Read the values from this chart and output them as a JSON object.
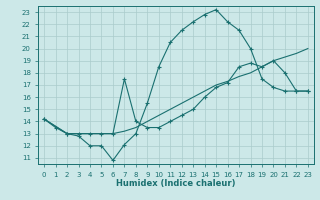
{
  "xlabel": "Humidex (Indice chaleur)",
  "ylabel": "",
  "xlim": [
    -0.5,
    23.5
  ],
  "ylim": [
    10.5,
    23.5
  ],
  "xticks": [
    0,
    1,
    2,
    3,
    4,
    5,
    6,
    7,
    8,
    9,
    10,
    11,
    12,
    13,
    14,
    15,
    16,
    17,
    18,
    19,
    20,
    21,
    22,
    23
  ],
  "yticks": [
    11,
    12,
    13,
    14,
    15,
    16,
    17,
    18,
    19,
    20,
    21,
    22,
    23
  ],
  "bg_color": "#cce8e8",
  "line_color": "#1a7070",
  "grid_color": "#aacccc",
  "lines": [
    {
      "x": [
        0,
        1,
        2,
        3,
        4,
        5,
        6,
        7,
        8,
        9,
        10,
        11,
        12,
        13,
        14,
        15,
        16,
        17,
        18,
        19,
        20,
        21,
        22,
        23
      ],
      "y": [
        14.2,
        13.5,
        13.0,
        12.8,
        12.0,
        12.0,
        10.8,
        12.1,
        13.0,
        15.5,
        18.5,
        20.5,
        21.5,
        22.2,
        22.8,
        23.2,
        22.2,
        21.5,
        20.0,
        17.5,
        16.8,
        16.5,
        16.5,
        16.5
      ],
      "marker": true
    },
    {
      "x": [
        0,
        2,
        3,
        4,
        5,
        6,
        7,
        8,
        9,
        10,
        11,
        12,
        13,
        14,
        15,
        16,
        17,
        18,
        19,
        20,
        21,
        22,
        23
      ],
      "y": [
        14.2,
        13.0,
        13.0,
        13.0,
        13.0,
        13.0,
        13.2,
        13.5,
        14.0,
        14.5,
        15.0,
        15.5,
        16.0,
        16.5,
        17.0,
        17.3,
        17.7,
        18.0,
        18.5,
        19.0,
        19.3,
        19.6,
        20.0
      ],
      "marker": false
    },
    {
      "x": [
        0,
        2,
        3,
        4,
        5,
        6,
        7,
        8,
        9,
        10,
        11,
        12,
        13,
        14,
        15,
        16,
        17,
        18,
        19,
        20,
        21,
        22,
        23
      ],
      "y": [
        14.2,
        13.0,
        13.0,
        13.0,
        13.0,
        13.0,
        17.5,
        14.0,
        13.5,
        13.5,
        14.0,
        14.5,
        15.0,
        16.0,
        16.8,
        17.2,
        18.5,
        18.8,
        18.5,
        19.0,
        18.0,
        16.5,
        16.5
      ],
      "marker": true
    }
  ]
}
